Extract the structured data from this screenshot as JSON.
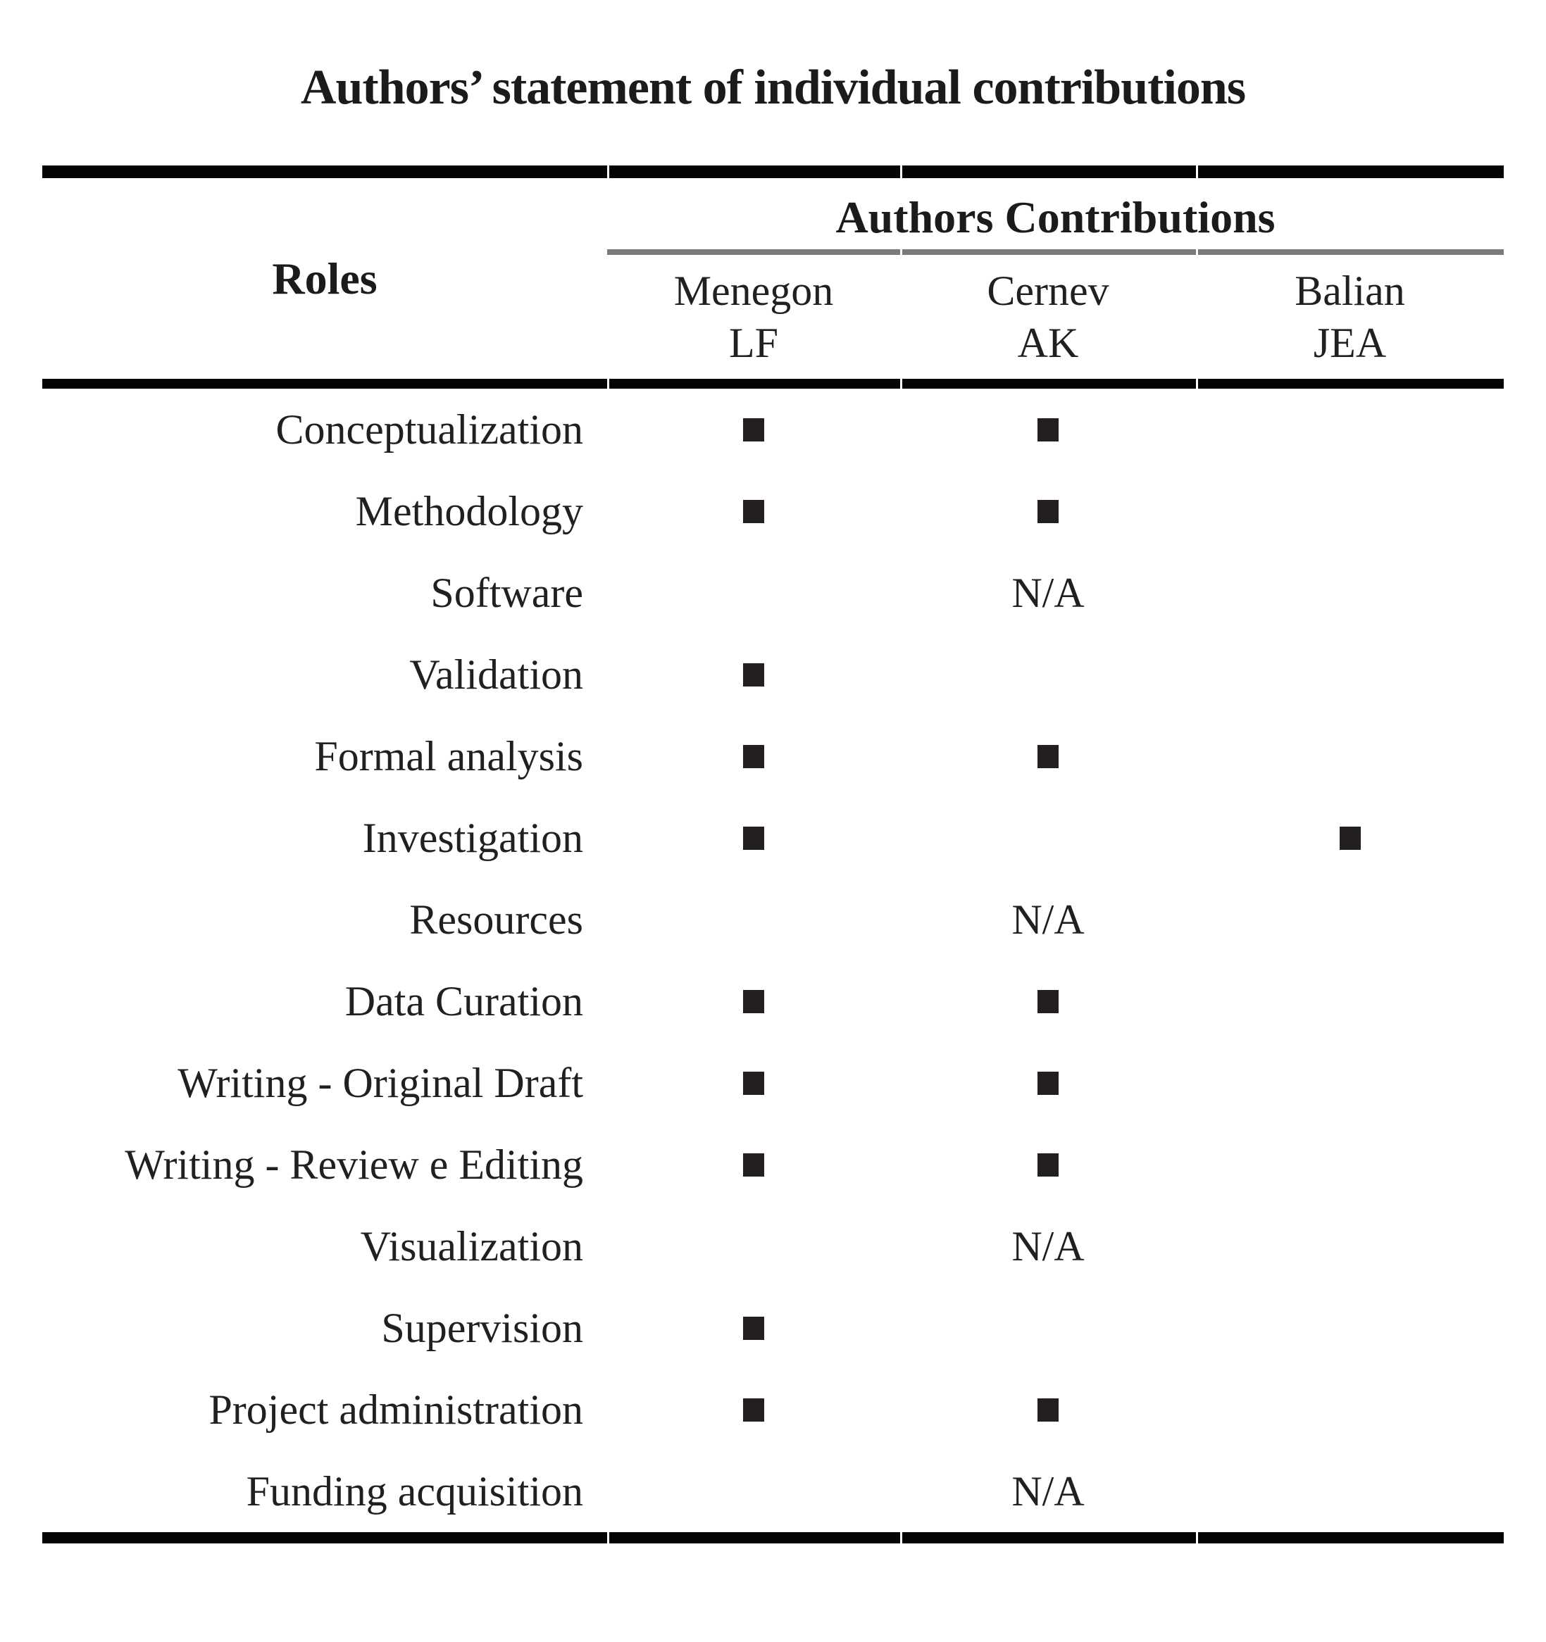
{
  "title": "Authors’ statement of individual contributions",
  "table": {
    "roles_header": "Roles",
    "contributions_header": "Authors Contributions",
    "marker_glyph": "■",
    "marker_meaning": "contributed",
    "colors": {
      "text": "#231f20",
      "marker": "#231f20",
      "thick_rule": "#050505",
      "gray_rule": "#7a7a7a"
    },
    "authors": [
      {
        "name": "Menegon",
        "initials": "LF"
      },
      {
        "name": "Cernev",
        "initials": "AK"
      },
      {
        "name": "Balian",
        "initials": "JEA"
      }
    ],
    "rows": [
      {
        "role": "Conceptualization",
        "cells": [
          "■",
          "■",
          ""
        ]
      },
      {
        "role": "Methodology",
        "cells": [
          "■",
          "■",
          ""
        ]
      },
      {
        "role": "Software",
        "cells": [
          "",
          "N/A",
          ""
        ]
      },
      {
        "role": "Validation",
        "cells": [
          "■",
          "",
          ""
        ]
      },
      {
        "role": "Formal analysis",
        "cells": [
          "■",
          "■",
          ""
        ]
      },
      {
        "role": "Investigation",
        "cells": [
          "■",
          "",
          "■"
        ]
      },
      {
        "role": "Resources",
        "cells": [
          "",
          "N/A",
          ""
        ]
      },
      {
        "role": "Data Curation",
        "cells": [
          "■",
          "■",
          ""
        ]
      },
      {
        "role": "Writing - Original Draft",
        "cells": [
          "■",
          "■",
          ""
        ]
      },
      {
        "role": "Writing - Review e Editing",
        "cells": [
          "■",
          "■",
          ""
        ]
      },
      {
        "role": "Visualization",
        "cells": [
          "",
          "N/A",
          ""
        ]
      },
      {
        "role": "Supervision",
        "cells": [
          "■",
          "",
          ""
        ]
      },
      {
        "role": "Project administration",
        "cells": [
          "■",
          "■",
          ""
        ]
      },
      {
        "role": "Funding acquisition",
        "cells": [
          "",
          "N/A",
          ""
        ]
      }
    ]
  }
}
